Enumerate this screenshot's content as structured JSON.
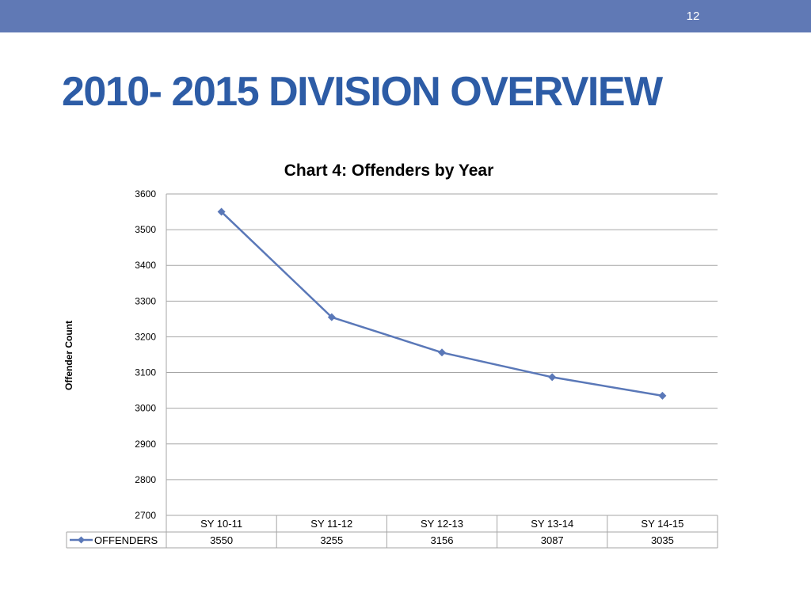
{
  "slide": {
    "number": "12",
    "title": "2010- 2015 DIVISION OVERVIEW"
  },
  "colors": {
    "header_bar": "#6079b5",
    "title": "#2d5ca6",
    "series": "#5a78b8",
    "gridline": "#a6a6a6",
    "text": "#000000"
  },
  "chart_data": {
    "type": "line",
    "title": "Chart 4: Offenders by Year",
    "xlabel": "",
    "ylabel": "Offender Count",
    "categories": [
      "SY 10-11",
      "SY 11-12",
      "SY 12-13",
      "SY 13-14",
      "SY 14-15"
    ],
    "series": [
      {
        "name": "OFFENDERS",
        "values": [
          3550,
          3255,
          3156,
          3087,
          3035
        ],
        "marker": "diamond",
        "color": "#5a78b8"
      }
    ],
    "ylim": [
      2700,
      3600
    ],
    "yticks": [
      2700,
      2800,
      2900,
      3000,
      3100,
      3200,
      3300,
      3400,
      3500,
      3600
    ],
    "grid": true,
    "legend": "data-table",
    "data_table": true
  }
}
